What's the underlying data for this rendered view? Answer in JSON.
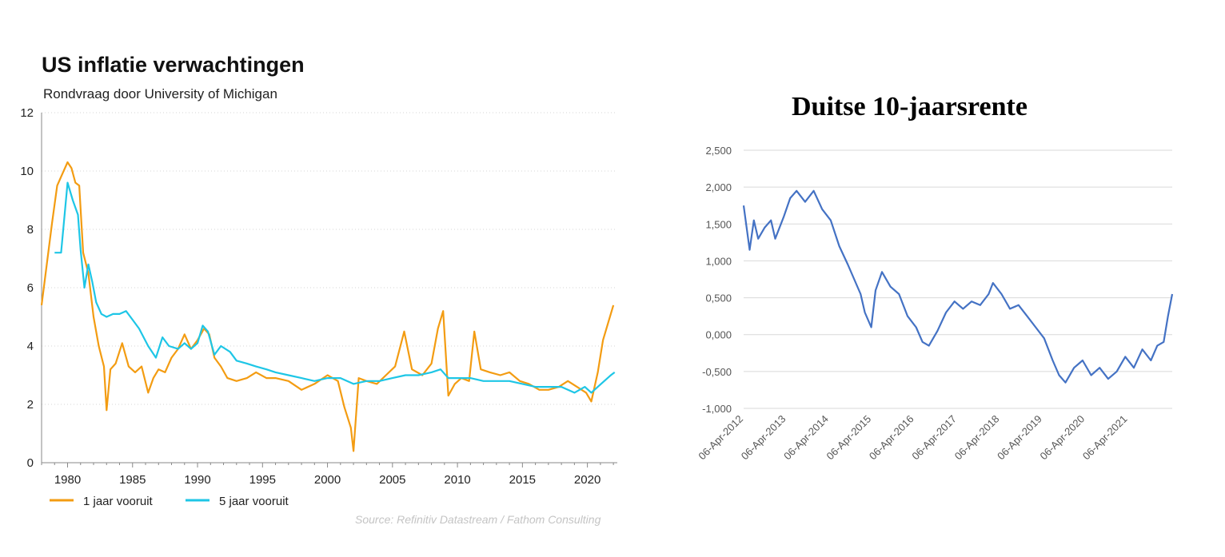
{
  "chart_data": [
    {
      "type": "line",
      "title": "US inflatie verwachtingen",
      "subtitle": "Rondvraag door University of Michigan",
      "source": "Source: Refinitiv Datastream / Fathom Consulting",
      "xlabel": "",
      "ylabel": "",
      "xlim": [
        1978,
        2022.3
      ],
      "ylim": [
        0,
        12
      ],
      "x_ticks": [
        "1980",
        "1985",
        "1990",
        "1995",
        "2000",
        "2005",
        "2010",
        "2015",
        "2020"
      ],
      "y_ticks": [
        "0",
        "2",
        "4",
        "6",
        "8",
        "10",
        "12"
      ],
      "grid": "horizontal dotted",
      "legend": "bottom-left",
      "series": [
        {
          "name": "1 jaar vooruit",
          "color": "#f39c12",
          "x": [
            1978.0,
            1978.4,
            1978.8,
            1979.2,
            1979.6,
            1980.0,
            1980.3,
            1980.6,
            1980.9,
            1981.2,
            1981.6,
            1982.0,
            1982.4,
            1982.8,
            1983.0,
            1983.3,
            1983.7,
            1984.2,
            1984.7,
            1985.2,
            1985.7,
            1986.2,
            1986.6,
            1987.0,
            1987.5,
            1988.0,
            1988.5,
            1989.0,
            1989.5,
            1990.0,
            1990.5,
            1990.9,
            1991.3,
            1991.8,
            1992.3,
            1993.0,
            1993.8,
            1994.5,
            1995.3,
            1996.0,
            1997.0,
            1998.0,
            1999.0,
            2000.0,
            2000.8,
            2001.3,
            2001.8,
            2002.0,
            2002.4,
            2003.0,
            2003.8,
            2004.5,
            2005.2,
            2005.9,
            2006.5,
            2007.3,
            2008.0,
            2008.5,
            2008.9,
            2009.3,
            2009.8,
            2010.3,
            2010.9,
            2011.3,
            2011.8,
            2012.5,
            2013.3,
            2014.0,
            2014.8,
            2015.5,
            2016.3,
            2017.0,
            2017.8,
            2018.5,
            2019.2,
            2019.9,
            2020.3,
            2020.8,
            2021.2,
            2021.6,
            2022.0
          ],
          "values": [
            5.4,
            6.8,
            8.2,
            9.5,
            9.9,
            10.3,
            10.1,
            9.6,
            9.5,
            7.2,
            6.5,
            5.0,
            4.0,
            3.3,
            1.8,
            3.2,
            3.4,
            4.1,
            3.3,
            3.1,
            3.3,
            2.4,
            2.9,
            3.2,
            3.1,
            3.6,
            3.9,
            4.4,
            3.9,
            4.2,
            4.6,
            4.4,
            3.6,
            3.3,
            2.9,
            2.8,
            2.9,
            3.1,
            2.9,
            2.9,
            2.8,
            2.5,
            2.7,
            3.0,
            2.8,
            1.9,
            1.2,
            0.4,
            2.9,
            2.8,
            2.7,
            3.0,
            3.3,
            4.5,
            3.2,
            3.0,
            3.4,
            4.6,
            5.2,
            2.3,
            2.7,
            2.9,
            2.8,
            4.5,
            3.2,
            3.1,
            3.0,
            3.1,
            2.8,
            2.7,
            2.5,
            2.5,
            2.6,
            2.8,
            2.6,
            2.4,
            2.1,
            3.1,
            4.2,
            4.8,
            5.4
          ]
        },
        {
          "name": "5 jaar vooruit",
          "color": "#1ec6e6",
          "x": [
            1979.0,
            1979.5,
            1980.0,
            1980.4,
            1980.8,
            1981.0,
            1981.3,
            1981.6,
            1981.9,
            1982.2,
            1982.6,
            1983.0,
            1983.5,
            1984.0,
            1984.5,
            1985.0,
            1985.5,
            1986.2,
            1986.8,
            1987.3,
            1987.8,
            1988.5,
            1989.0,
            1989.5,
            1990.0,
            1990.4,
            1990.8,
            1991.3,
            1991.8,
            1992.5,
            1993.0,
            1993.8,
            1994.5,
            1995.3,
            1996.0,
            1997.0,
            1998.0,
            1999.0,
            2000.0,
            2001.0,
            2002.0,
            2003.0,
            2004.0,
            2005.0,
            2006.0,
            2007.0,
            2008.0,
            2008.7,
            2009.3,
            2010.0,
            2011.0,
            2012.0,
            2013.0,
            2014.0,
            2015.0,
            2016.0,
            2017.0,
            2018.0,
            2019.0,
            2019.8,
            2020.3,
            2020.8,
            2021.3,
            2021.8,
            2022.1
          ],
          "values": [
            7.2,
            7.2,
            9.6,
            9.0,
            8.5,
            7.3,
            6.0,
            6.8,
            6.2,
            5.5,
            5.1,
            5.0,
            5.1,
            5.1,
            5.2,
            4.9,
            4.6,
            4.0,
            3.6,
            4.3,
            4.0,
            3.9,
            4.1,
            3.9,
            4.1,
            4.7,
            4.5,
            3.7,
            4.0,
            3.8,
            3.5,
            3.4,
            3.3,
            3.2,
            3.1,
            3.0,
            2.9,
            2.8,
            2.9,
            2.9,
            2.7,
            2.8,
            2.8,
            2.9,
            3.0,
            3.0,
            3.1,
            3.2,
            2.9,
            2.9,
            2.9,
            2.8,
            2.8,
            2.8,
            2.7,
            2.6,
            2.6,
            2.6,
            2.4,
            2.6,
            2.4,
            2.6,
            2.8,
            3.0,
            3.1
          ]
        }
      ]
    },
    {
      "type": "line",
      "title": "Duitse 10-jaarsrente",
      "xlabel": "",
      "ylabel": "",
      "xlim": [
        2012.26,
        2022.3
      ],
      "ylim": [
        -1.0,
        2.5
      ],
      "x_ticks": [
        "06-Apr-2012",
        "06-Apr-2013",
        "06-Apr-2014",
        "06-Apr-2015",
        "06-Apr-2016",
        "06-Apr-2017",
        "06-Apr-2018",
        "06-Apr-2019",
        "06-Apr-2020",
        "06-Apr-2021"
      ],
      "y_ticks": [
        "-1,000",
        "-0,500",
        "0,000",
        "0,500",
        "1,000",
        "1,500",
        "2,000",
        "2,500"
      ],
      "grid": "horizontal",
      "legend": "none",
      "series": [
        {
          "color": "#4472c4",
          "x": [
            2012.26,
            2012.4,
            2012.5,
            2012.6,
            2012.75,
            2012.9,
            2013.0,
            2013.2,
            2013.35,
            2013.5,
            2013.7,
            2013.9,
            2014.1,
            2014.3,
            2014.5,
            2014.7,
            2014.85,
            2015.0,
            2015.1,
            2015.25,
            2015.35,
            2015.5,
            2015.7,
            2015.9,
            2016.1,
            2016.3,
            2016.45,
            2016.6,
            2016.8,
            2017.0,
            2017.2,
            2017.4,
            2017.6,
            2017.8,
            2018.0,
            2018.1,
            2018.3,
            2018.5,
            2018.7,
            2018.9,
            2019.1,
            2019.3,
            2019.5,
            2019.65,
            2019.8,
            2020.0,
            2020.2,
            2020.4,
            2020.6,
            2020.8,
            2021.0,
            2021.2,
            2021.4,
            2021.6,
            2021.8,
            2021.95,
            2022.1,
            2022.2,
            2022.3
          ],
          "values": [
            1.75,
            1.15,
            1.55,
            1.3,
            1.45,
            1.55,
            1.3,
            1.6,
            1.85,
            1.95,
            1.8,
            1.95,
            1.7,
            1.55,
            1.2,
            0.95,
            0.75,
            0.55,
            0.3,
            0.1,
            0.6,
            0.85,
            0.65,
            0.55,
            0.25,
            0.1,
            -0.1,
            -0.15,
            0.05,
            0.3,
            0.45,
            0.35,
            0.45,
            0.4,
            0.55,
            0.7,
            0.55,
            0.35,
            0.4,
            0.25,
            0.1,
            -0.05,
            -0.35,
            -0.55,
            -0.65,
            -0.45,
            -0.35,
            -0.55,
            -0.45,
            -0.6,
            -0.5,
            -0.3,
            -0.45,
            -0.2,
            -0.35,
            -0.15,
            -0.1,
            0.25,
            0.55
          ]
        }
      ]
    }
  ]
}
